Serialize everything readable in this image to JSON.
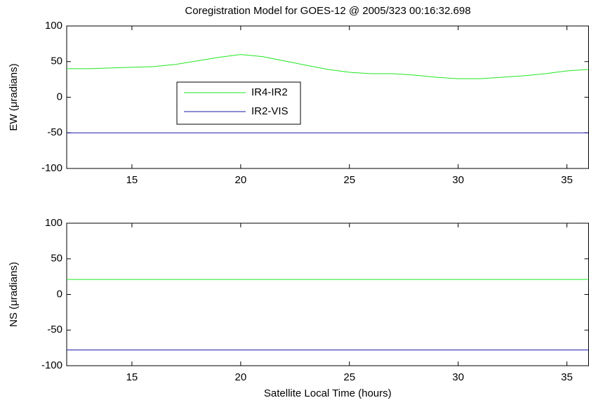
{
  "chart_data": [
    {
      "type": "line",
      "title": "Coregistration Model for GOES-12 @ 2005/323 00:16:32.698",
      "y_label": "EW (μradians)",
      "x": [
        12,
        13,
        14,
        15,
        16,
        17,
        18,
        19,
        20,
        21,
        22,
        23,
        24,
        25,
        26,
        27,
        28,
        29,
        30,
        31,
        32,
        33,
        34,
        35,
        36
      ],
      "series": [
        {
          "name": "IR4-IR2",
          "color": "#22e622",
          "values": [
            40,
            40,
            41,
            42,
            43,
            46,
            51,
            56,
            60,
            57,
            51,
            45,
            39,
            35,
            33,
            33,
            31,
            28,
            26,
            26,
            28,
            30,
            33,
            37,
            39
          ]
        },
        {
          "name": "IR2-VIS",
          "color": "#1a1aa8",
          "values": [
            -50,
            -50,
            -50,
            -50,
            -50,
            -50,
            -50,
            -50,
            -50,
            -50,
            -50,
            -50,
            -50,
            -50,
            -50,
            -50,
            -50,
            -50,
            -50,
            -50,
            -50,
            -50,
            -50,
            -50,
            -50
          ]
        }
      ],
      "xlim": [
        12,
        36
      ],
      "xticks": [
        15,
        20,
        25,
        30,
        35
      ],
      "ylim": [
        -100,
        100
      ],
      "yticks": [
        -100,
        -50,
        0,
        50,
        100
      ]
    },
    {
      "type": "line",
      "x_label": "Satellite Local Time (hours)",
      "y_label": "NS (μradians)",
      "x": [
        12,
        36
      ],
      "series": [
        {
          "color": "#22e622",
          "values": [
            21,
            21
          ]
        },
        {
          "color": "#1a1aa8",
          "values": [
            -78,
            -78
          ]
        }
      ],
      "xlim": [
        12,
        36
      ],
      "xticks": [
        15,
        20,
        25,
        30,
        35
      ],
      "ylim": [
        -100,
        100
      ],
      "yticks": [
        -100,
        -50,
        0,
        50,
        100
      ]
    }
  ]
}
